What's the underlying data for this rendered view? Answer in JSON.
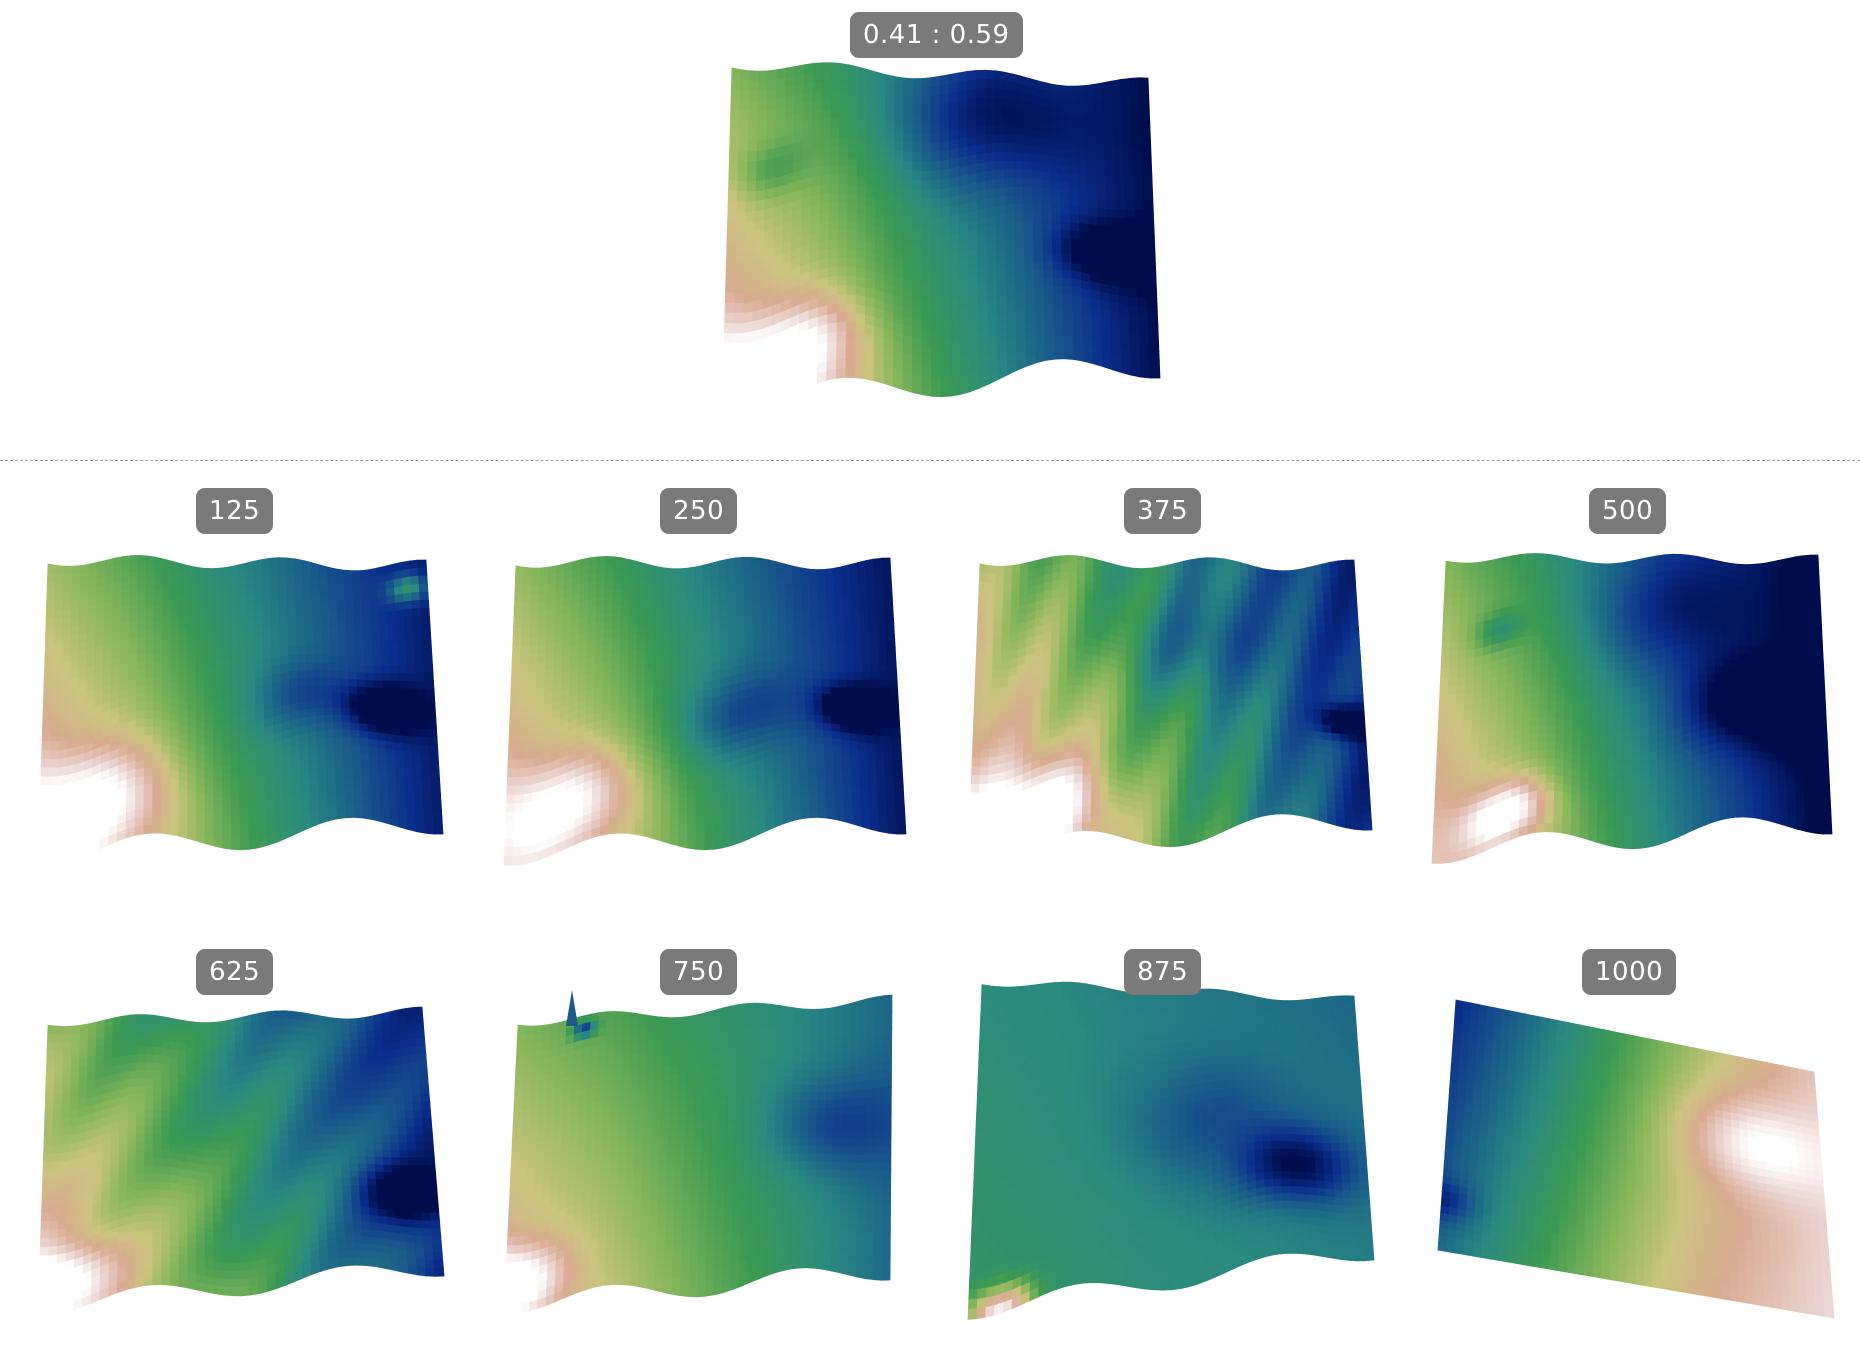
{
  "colors": {
    "colormap": [
      "#000d4d",
      "#0b2e8c",
      "#1a5c8a",
      "#2a8a80",
      "#3d9a52",
      "#86b65a",
      "#c9c47d",
      "#d9ab92",
      "#ead2cd",
      "#ffffff"
    ],
    "badge_bg": "#7a7a7a",
    "divider": "#a0a0a0"
  },
  "top": {
    "label": "0.41 : 0.59"
  },
  "panels": [
    {
      "label": "125"
    },
    {
      "label": "250"
    },
    {
      "label": "375"
    },
    {
      "label": "500"
    },
    {
      "label": "625"
    },
    {
      "label": "750"
    },
    {
      "label": "875"
    },
    {
      "label": "1000"
    }
  ]
}
